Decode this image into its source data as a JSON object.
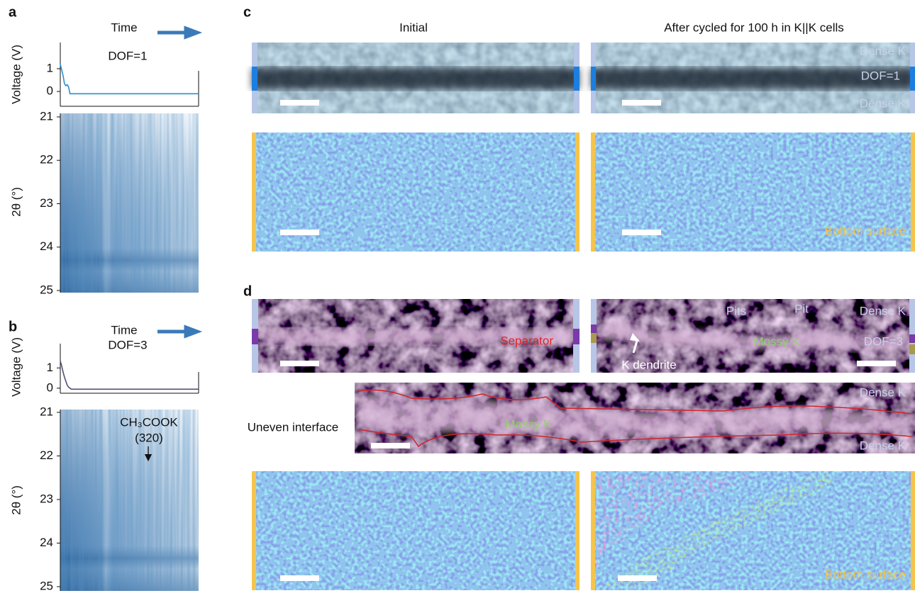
{
  "panel_labels": [
    "a",
    "b",
    "c",
    "d"
  ],
  "chart_data": [
    {
      "type": "line",
      "header": "Time",
      "annotation": "DOF=1",
      "ylabel": "Voltage (V)",
      "ylim": [
        -0.65,
        2.15
      ],
      "yticks": [
        0,
        1
      ],
      "xlim": [
        0,
        100
      ],
      "x": [
        0,
        1,
        2,
        3,
        4,
        5,
        6,
        7,
        9,
        100
      ],
      "series": [
        {
          "color": "#2a8fd0",
          "values": [
            1.2,
            0.95,
            0.7,
            0.35,
            0.25,
            0.3,
            0.2,
            -0.1,
            -0.1,
            -0.1
          ]
        }
      ]
    },
    {
      "type": "image",
      "ylabel": "2θ (°)",
      "ylim": [
        21,
        25
      ],
      "yticks": [
        21,
        22,
        23,
        24,
        25
      ],
      "y_inverted": true
    },
    {
      "type": "line",
      "header": "Time",
      "annotation": "DOF=3",
      "ylabel": "Voltage (V)",
      "ylim": [
        -0.25,
        2.2
      ],
      "yticks": [
        0,
        1
      ],
      "xlim": [
        0,
        100
      ],
      "x": [
        0,
        1,
        2,
        3,
        4,
        5,
        6,
        8,
        100
      ],
      "series": [
        {
          "color": "#5a4a78",
          "values": [
            1.35,
            1.1,
            0.8,
            0.55,
            0.35,
            0.15,
            0.05,
            -0.05,
            -0.05
          ]
        }
      ]
    },
    {
      "type": "image",
      "ylabel": "2θ (°)",
      "ylim": [
        21,
        25
      ],
      "yticks": [
        21,
        22,
        23,
        24,
        25
      ],
      "y_inverted": true,
      "annotations": [
        "CH₃COOK",
        "(320)"
      ]
    }
  ],
  "panel_c": {
    "columns": [
      "Initial",
      "After cycled for 100 h in K||K cells"
    ],
    "layers": [
      "Dense K",
      "DOF=1",
      "Dense K"
    ],
    "bottom_label": "Bottom surface"
  },
  "panel_d": {
    "separator": "Separator",
    "pits": "Pits",
    "pit": "Pit",
    "dense_top": "Dense K",
    "mossy": "Mossy K",
    "dof": "DOF=3",
    "dendrite": "K dendrite",
    "interface_label": "Uneven interface",
    "interface_dense_top": "Dense K",
    "interface_mossy": "Mossy K",
    "interface_dense_bottom": "Dense K",
    "bottom_label": "Bottom surface"
  }
}
